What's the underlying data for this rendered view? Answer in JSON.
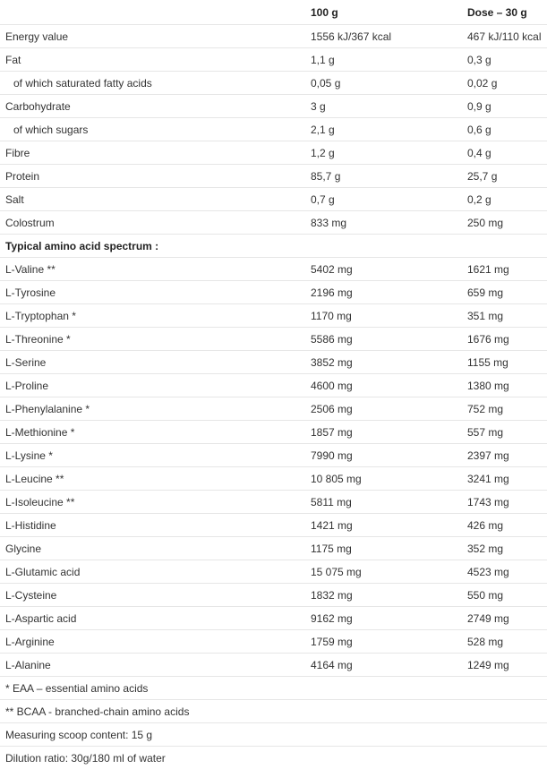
{
  "header": {
    "col1": "",
    "col2": "100 g",
    "col3": "Dose – 30 g"
  },
  "nutrition": [
    {
      "label": "Energy value",
      "per100": "1556 kJ/367 kcal",
      "dose": "467 kJ/110 kcal",
      "indent": false
    },
    {
      "label": "Fat",
      "per100": "1,1 g",
      "dose": "0,3 g",
      "indent": false
    },
    {
      "label": "of which saturated fatty acids",
      "per100": "0,05 g",
      "dose": "0,02 g",
      "indent": true
    },
    {
      "label": "Carbohydrate",
      "per100": "3 g",
      "dose": "0,9 g",
      "indent": false
    },
    {
      "label": "of which sugars",
      "per100": "2,1 g",
      "dose": "0,6 g",
      "indent": true
    },
    {
      "label": "Fibre",
      "per100": "1,2 g",
      "dose": "0,4 g",
      "indent": false
    },
    {
      "label": "Protein",
      "per100": "85,7 g",
      "dose": "25,7 g",
      "indent": false
    },
    {
      "label": "Salt",
      "per100": "0,7 g",
      "dose": "0,2 g",
      "indent": false
    },
    {
      "label": "Colostrum",
      "per100": "833 mg",
      "dose": "250 mg",
      "indent": false
    }
  ],
  "amino_section_title": "Typical amino acid spectrum :",
  "amino_acids": [
    {
      "label": "L-Valine **",
      "per100": "5402 mg",
      "dose": "1621 mg"
    },
    {
      "label": "L-Tyrosine",
      "per100": "2196 mg",
      "dose": "659 mg"
    },
    {
      "label": "L-Tryptophan *",
      "per100": "1170 mg",
      "dose": "351 mg"
    },
    {
      "label": "L-Threonine *",
      "per100": "5586 mg",
      "dose": "1676 mg"
    },
    {
      "label": "L-Serine",
      "per100": "3852 mg",
      "dose": "1155 mg"
    },
    {
      "label": "L-Proline",
      "per100": "4600 mg",
      "dose": "1380 mg"
    },
    {
      "label": "L-Phenylalanine *",
      "per100": "2506 mg",
      "dose": "752 mg"
    },
    {
      "label": "L-Methionine *",
      "per100": "1857 mg",
      "dose": "557 mg"
    },
    {
      "label": "L-Lysine *",
      "per100": "7990 mg",
      "dose": "2397 mg"
    },
    {
      "label": "L-Leucine **",
      "per100": "10 805 mg",
      "dose": "3241 mg"
    },
    {
      "label": "L-Isoleucine **",
      "per100": "5811 mg",
      "dose": "1743 mg"
    },
    {
      "label": "L-Histidine",
      "per100": "1421 mg",
      "dose": "426 mg"
    },
    {
      "label": "Glycine",
      "per100": "1175 mg",
      "dose": "352 mg"
    },
    {
      "label": "L-Glutamic acid",
      "per100": "15 075 mg",
      "dose": "4523 mg"
    },
    {
      "label": "L-Cysteine",
      "per100": "1832 mg",
      "dose": "550 mg"
    },
    {
      "label": "L-Aspartic acid",
      "per100": "9162 mg",
      "dose": "2749 mg"
    },
    {
      "label": "L-Arginine",
      "per100": "1759 mg",
      "dose": "528 mg"
    },
    {
      "label": "L-Alanine",
      "per100": "4164 mg",
      "dose": "1249 mg"
    }
  ],
  "footnotes": [
    "* EAA – essential amino acids",
    "** BCAA - branched-chain amino acids",
    "Measuring scoop content: 15 g",
    "Dilution ratio: 30g/180 ml of water"
  ]
}
